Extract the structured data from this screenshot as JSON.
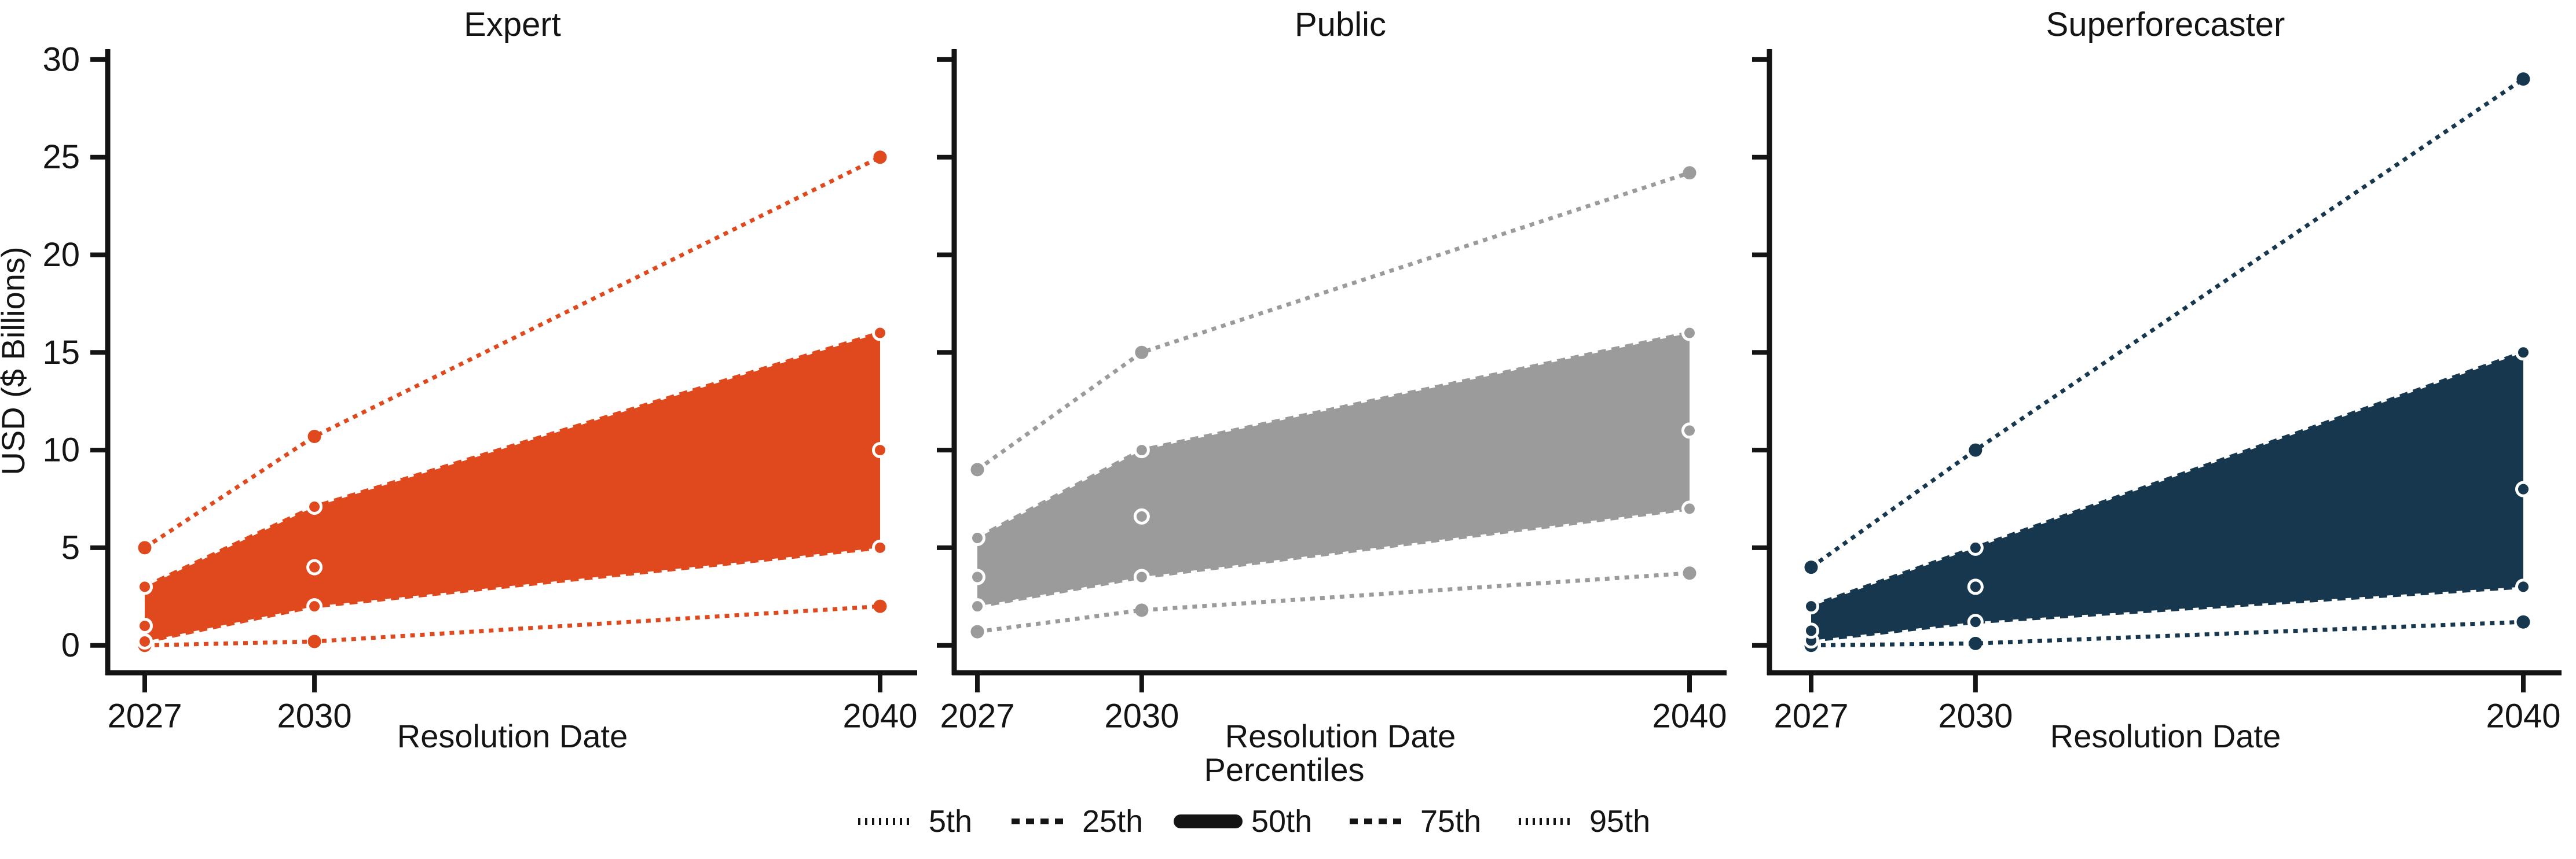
{
  "figure": {
    "ylabel": "USD ($ Billions)",
    "xlabel": "Resolution Date",
    "background": "#ffffff",
    "axis_color": "#141414"
  },
  "axes": {
    "yticks": [
      0,
      5,
      10,
      15,
      20,
      25,
      30
    ],
    "xticks": [
      "2027",
      "2030",
      "2040"
    ],
    "ylim": [
      0,
      30
    ],
    "grid": false
  },
  "legend": {
    "title": "Percentiles",
    "position": "bottom-center",
    "color": "#141414",
    "entries": [
      {
        "label": "5th",
        "style": "dotted-fine"
      },
      {
        "label": "25th",
        "style": "dashed"
      },
      {
        "label": "50th",
        "style": "solid-thick"
      },
      {
        "label": "75th",
        "style": "dashed"
      },
      {
        "label": "95th",
        "style": "dotted-fine"
      }
    ]
  },
  "chart_data": [
    {
      "type": "line",
      "title": "Expert",
      "color": "#E0491E",
      "xlabel": "Resolution Date",
      "x": [
        2027,
        2030,
        2040
      ],
      "ylim": [
        0,
        30
      ],
      "band_between": [
        "25th",
        "75th"
      ],
      "series": [
        {
          "name": "5th",
          "style": "dotted",
          "values": [
            0,
            0.2,
            2
          ]
        },
        {
          "name": "25th",
          "style": "dashed",
          "values": [
            0.2,
            2,
            5
          ]
        },
        {
          "name": "50th",
          "style": "solid",
          "values": [
            1,
            4,
            10
          ]
        },
        {
          "name": "75th",
          "style": "dashed",
          "values": [
            3,
            7.1,
            16
          ]
        },
        {
          "name": "95th",
          "style": "dotted",
          "values": [
            5,
            10.7,
            25
          ]
        }
      ]
    },
    {
      "type": "line",
      "title": "Public",
      "color": "#9B9B9B",
      "xlabel": "Resolution Date",
      "x": [
        2027,
        2030,
        2040
      ],
      "ylim": [
        0,
        30
      ],
      "band_between": [
        "25th",
        "75th"
      ],
      "series": [
        {
          "name": "5th",
          "style": "dotted",
          "values": [
            0.7,
            1.8,
            3.7
          ]
        },
        {
          "name": "25th",
          "style": "dashed",
          "values": [
            2,
            3.5,
            7
          ]
        },
        {
          "name": "50th",
          "style": "solid",
          "values": [
            3.5,
            6.6,
            11
          ]
        },
        {
          "name": "75th",
          "style": "dashed",
          "values": [
            5.5,
            10,
            16
          ]
        },
        {
          "name": "95th",
          "style": "dotted",
          "values": [
            9,
            15,
            24.2
          ]
        }
      ]
    },
    {
      "type": "line",
      "title": "Superforecaster",
      "color": "#16374E",
      "xlabel": "Resolution Date",
      "x": [
        2027,
        2030,
        2040
      ],
      "ylim": [
        0,
        30
      ],
      "band_between": [
        "25th",
        "75th"
      ],
      "series": [
        {
          "name": "5th",
          "style": "dotted",
          "values": [
            0,
            0.1,
            1.2
          ]
        },
        {
          "name": "25th",
          "style": "dashed",
          "values": [
            0.25,
            1.2,
            3
          ]
        },
        {
          "name": "50th",
          "style": "solid",
          "values": [
            0.75,
            3,
            8
          ]
        },
        {
          "name": "75th",
          "style": "dashed",
          "values": [
            2,
            5,
            15
          ]
        },
        {
          "name": "95th",
          "style": "dotted",
          "values": [
            4,
            10,
            29
          ]
        }
      ]
    }
  ]
}
